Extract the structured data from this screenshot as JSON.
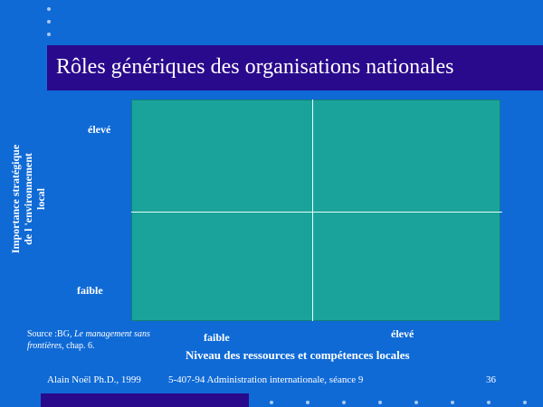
{
  "slide": {
    "title": "Rôles génériques des organisations nationales"
  },
  "matrix": {
    "y_axis_label_line1": "Importance stratégique",
    "y_axis_label_line2": "de l 'environnement",
    "y_axis_label_line3": "local",
    "y_high": "élevé",
    "y_low": "faible",
    "x_axis_label": "Niveau des ressources et compétences locales",
    "x_low": "faible",
    "x_high": "élevé"
  },
  "source": {
    "prefix": "Source :BG, ",
    "italic_1": "Le management sans frontières",
    "suffix": ", chap. 6."
  },
  "footer": {
    "author": "Alain Noël Ph.D., 1999",
    "course": "5-407-94 Administration internationale, séance 9",
    "page_number": "36"
  },
  "colors": {
    "background": "#0f6ad6",
    "title_bar": "#2a0a8c",
    "matrix_fill": "#1aa39a"
  }
}
